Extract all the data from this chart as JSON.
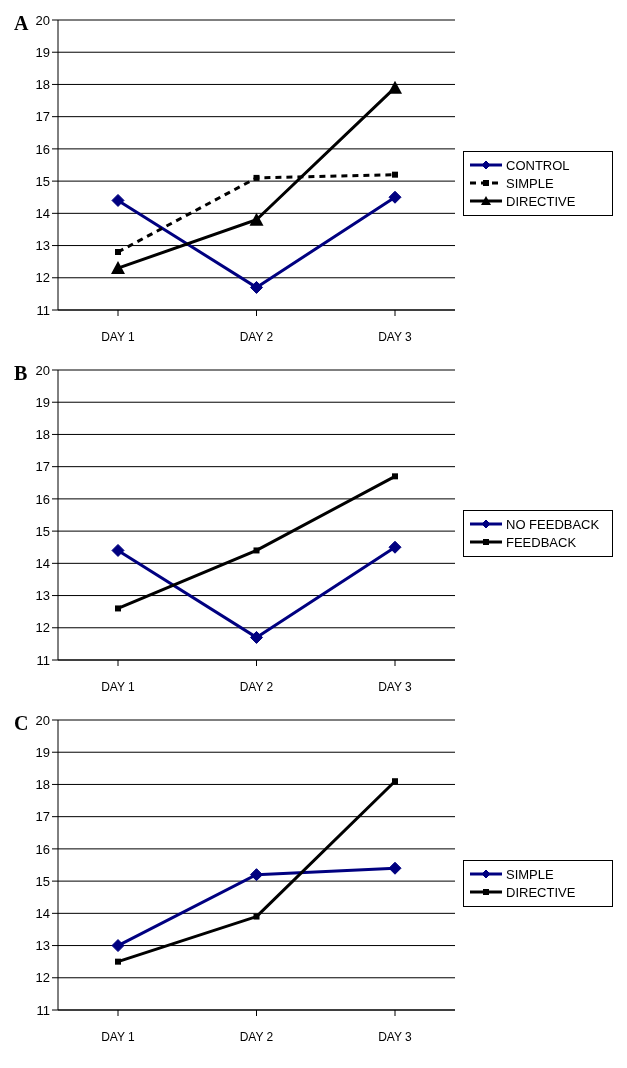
{
  "chart_data": [
    {
      "type": "line",
      "title": "A",
      "categories": [
        "DAY 1",
        "DAY 2",
        "DAY 3"
      ],
      "ylim": [
        11,
        20
      ],
      "yticks": [
        11,
        12,
        13,
        14,
        15,
        16,
        17,
        18,
        19,
        20
      ],
      "grid": "y",
      "legend": "right",
      "series": [
        {
          "name": "CONTROL",
          "color": "#000080",
          "values": [
            14.4,
            11.7,
            14.5
          ],
          "marker": "diamond",
          "line_style": "solid"
        },
        {
          "name": "SIMPLE",
          "color": "#000000",
          "values": [
            12.8,
            15.1,
            15.2
          ],
          "marker": "square",
          "line_style": "dashed"
        },
        {
          "name": "DIRECTIVE",
          "color": "#000000",
          "values": [
            12.3,
            13.8,
            17.9
          ],
          "marker": "triangle",
          "line_style": "solid"
        }
      ]
    },
    {
      "type": "line",
      "title": "B",
      "categories": [
        "DAY 1",
        "DAY 2",
        "DAY 3"
      ],
      "ylim": [
        11,
        20
      ],
      "yticks": [
        11,
        12,
        13,
        14,
        15,
        16,
        17,
        18,
        19,
        20
      ],
      "grid": "y",
      "legend": "right",
      "series": [
        {
          "name": "NO FEEDBACK",
          "color": "#000080",
          "values": [
            14.4,
            11.7,
            14.5
          ],
          "marker": "diamond",
          "line_style": "solid"
        },
        {
          "name": "FEEDBACK",
          "color": "#000000",
          "values": [
            12.6,
            14.4,
            16.7
          ],
          "marker": "square",
          "line_style": "solid"
        }
      ]
    },
    {
      "type": "line",
      "title": "C",
      "categories": [
        "DAY 1",
        "DAY 2",
        "DAY 3"
      ],
      "ylim": [
        11,
        20
      ],
      "yticks": [
        11,
        12,
        13,
        14,
        15,
        16,
        17,
        18,
        19,
        20
      ],
      "grid": "y",
      "legend": "right",
      "series": [
        {
          "name": "SIMPLE",
          "color": "#000080",
          "values": [
            13.0,
            15.2,
            15.4
          ],
          "marker": "diamond",
          "line_style": "solid"
        },
        {
          "name": "DIRECTIVE",
          "color": "#000000",
          "values": [
            12.5,
            13.9,
            18.1
          ],
          "marker": "square",
          "line_style": "solid"
        }
      ]
    }
  ]
}
